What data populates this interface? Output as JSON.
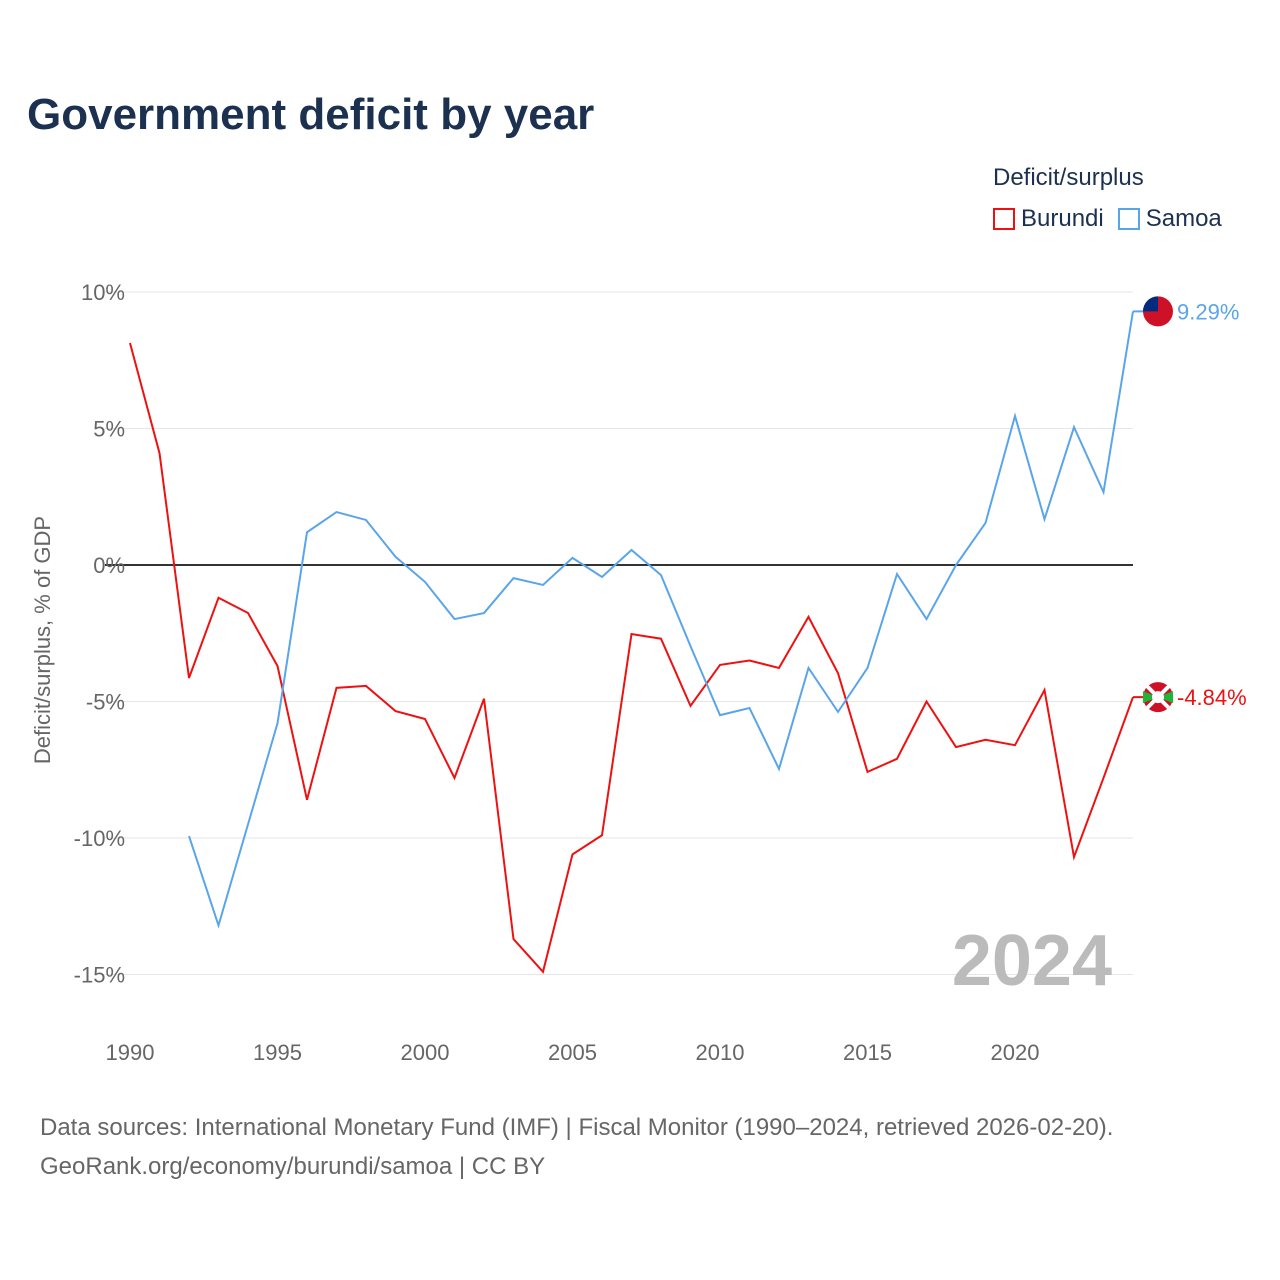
{
  "title": "Government deficit by year",
  "legend": {
    "title": "Deficit/surplus",
    "items": [
      "Burundi",
      "Samoa"
    ]
  },
  "footer": {
    "line1": "Data sources: International Monetary Fund (IMF) | Fiscal Monitor (1990–2024, retrieved 2026-02-20).",
    "line2": "GeoRank.org/economy/burundi/samoa | CC BY"
  },
  "chart_data": {
    "type": "line",
    "title": "Government deficit by year",
    "xlabel": "",
    "ylabel": "Deficit/surplus, % of GDP",
    "xlim": [
      1990,
      2024
    ],
    "ylim": [
      -17,
      10.5
    ],
    "yticks": [
      10,
      5,
      0,
      -5,
      -10,
      -15
    ],
    "ytick_labels": [
      "10%",
      "5%",
      "0%",
      "-5%",
      "-10%",
      "-15%"
    ],
    "xticks": [
      1990,
      1995,
      2000,
      2005,
      2010,
      2015,
      2020
    ],
    "year_label": "2024",
    "series": [
      {
        "name": "Burundi",
        "color": "#ee1111",
        "start": 1990,
        "end_label": "-4.84%",
        "flag": "burundi",
        "values": [
          8.13,
          4.1,
          -4.14,
          -1.2,
          -1.76,
          -3.7,
          -8.6,
          -4.5,
          -4.43,
          -5.35,
          -5.64,
          -7.8,
          -4.9,
          -13.7,
          -14.9,
          -10.6,
          -9.9,
          -2.53,
          -2.7,
          -5.16,
          -3.66,
          -3.5,
          -3.77,
          -1.9,
          -3.96,
          -7.58,
          -7.1,
          -5.0,
          -6.67,
          -6.4,
          -6.6,
          -4.58,
          -10.7,
          -7.8,
          -4.84
        ]
      },
      {
        "name": "Samoa",
        "color": "#5aa5ea",
        "start": 1992,
        "end_label": "9.29%",
        "flag": "samoa",
        "values": [
          -9.93,
          -13.2,
          -9.5,
          -5.8,
          1.2,
          1.94,
          1.65,
          0.3,
          -0.62,
          -1.98,
          -1.76,
          -0.48,
          -0.73,
          0.26,
          -0.44,
          0.55,
          -0.37,
          -2.97,
          -5.5,
          -5.24,
          -7.47,
          -3.77,
          -5.38,
          -3.77,
          -0.33,
          -1.98,
          0,
          1.54,
          5.46,
          1.68,
          5.05,
          2.67,
          9.29
        ]
      }
    ]
  }
}
